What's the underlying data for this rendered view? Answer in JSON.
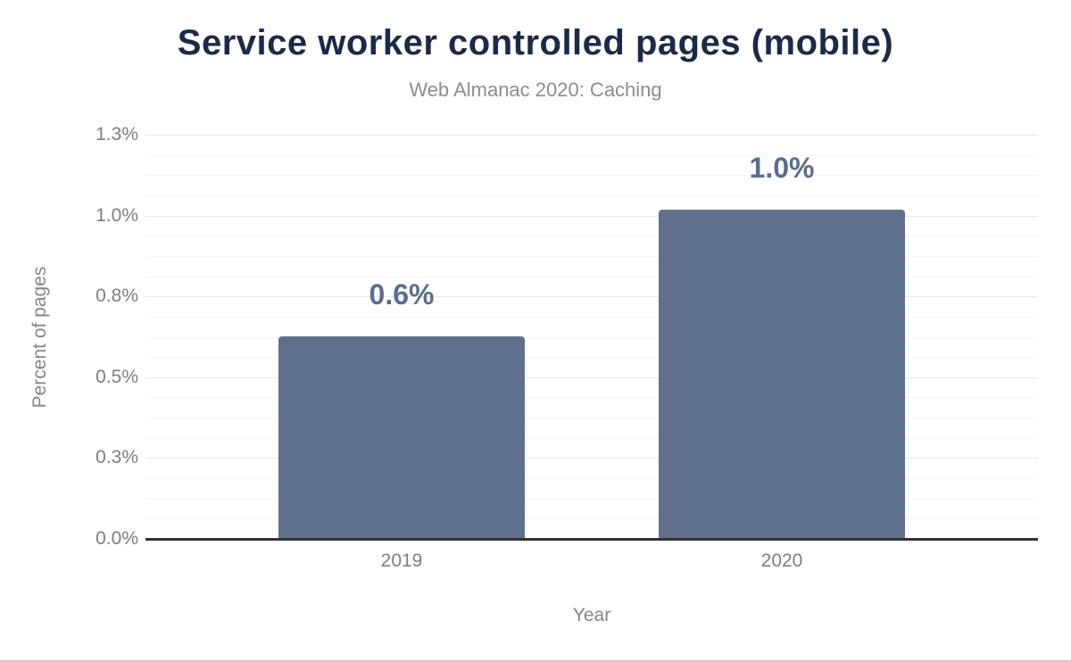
{
  "chart_data": {
    "type": "bar",
    "title": "Service worker controlled pages (mobile)",
    "subtitle": "Web Almanac 2020: Caching",
    "categories": [
      "2019",
      "2020"
    ],
    "values": [
      0.63,
      1.02
    ],
    "value_labels": [
      "0.6%",
      "1.0%"
    ],
    "xlabel": "Year",
    "ylabel": "Percent of pages",
    "ylim": [
      0,
      1.25
    ],
    "yticks": [
      {
        "value": 0.0,
        "label": "0.0%"
      },
      {
        "value": 0.25,
        "label": "0.3%"
      },
      {
        "value": 0.5,
        "label": "0.5%"
      },
      {
        "value": 0.75,
        "label": "0.8%"
      },
      {
        "value": 1.0,
        "label": "1.0%"
      },
      {
        "value": 1.25,
        "label": "1.3%"
      }
    ],
    "minor_grid_step": 0.0625,
    "grid": true,
    "legend": "none",
    "colors": {
      "bar": "#5e708e",
      "value_label": "#5a6d90",
      "title": "#1a2b49",
      "subtitle": "#8d8d8d",
      "axis_text": "#7b7e82",
      "major_grid": "#e7e7e7",
      "minor_grid": "#f5f5f5",
      "baseline": "#333333"
    }
  }
}
